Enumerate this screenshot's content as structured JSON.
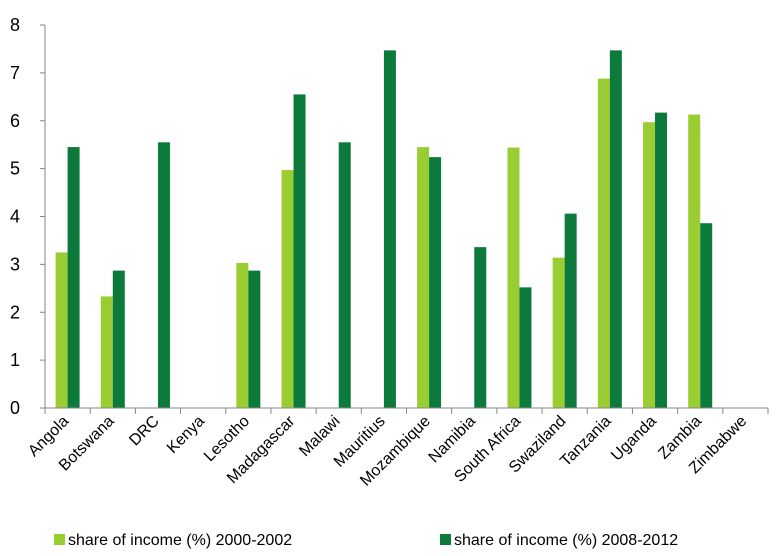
{
  "chart_data": {
    "type": "bar",
    "title": "",
    "xlabel": "",
    "ylabel": "",
    "ylim": [
      0,
      8
    ],
    "yticks": [
      0,
      1,
      2,
      3,
      4,
      5,
      6,
      7,
      8
    ],
    "grid": false,
    "legend_position": "bottom",
    "categories": [
      "Angola",
      "Botswana",
      "DRC",
      "Kenya",
      "Lesotho",
      "Madagascar",
      "Malawi",
      "Mauritius",
      "Mozambique",
      "Namibia",
      "South Africa",
      "Swaziland",
      "Tanzania",
      "Uganda",
      "Zambia",
      "Zimbabwe"
    ],
    "series": [
      {
        "name": "share of income (%) 2000-2002",
        "color": "#9acd32",
        "values": [
          3.25,
          2.33,
          null,
          null,
          3.03,
          4.97,
          null,
          null,
          5.45,
          null,
          5.44,
          3.14,
          6.88,
          5.97,
          6.13,
          null
        ]
      },
      {
        "name": "share of income (%) 2008-2012",
        "color": "#0b7a3a",
        "values": [
          5.45,
          2.87,
          5.55,
          null,
          2.87,
          6.55,
          5.55,
          7.47,
          5.24,
          3.36,
          2.52,
          4.06,
          7.47,
          6.17,
          3.86,
          null
        ]
      }
    ]
  }
}
